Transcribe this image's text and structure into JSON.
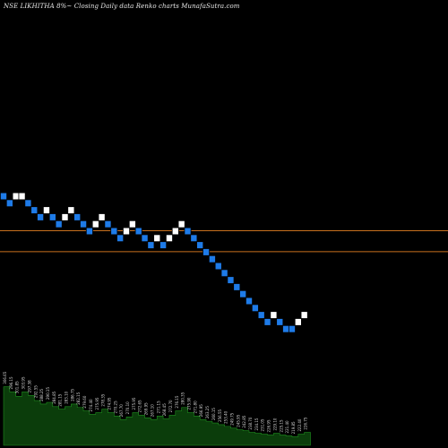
{
  "title": "NSE LIKHITHA 8%~  Closing Daily data  Renko  charts MunafaSutra.com",
  "colors": {
    "background": "#000000",
    "up_brick": "#ffffff",
    "down_brick": "#1e7be8",
    "brick_border": "#000000",
    "reference_line": "#c8701e",
    "volume_fill": "#0b3d0b",
    "volume_fill_bright": "#1f8f1f"
  },
  "chart_data": {
    "type": "renko",
    "bricks": [
      {
        "level": 0,
        "dir": "down"
      },
      {
        "level": -1,
        "dir": "down"
      },
      {
        "level": 0,
        "dir": "up"
      },
      {
        "level": 0,
        "dir": "up"
      },
      {
        "level": -1,
        "dir": "down"
      },
      {
        "level": -2,
        "dir": "down"
      },
      {
        "level": -3,
        "dir": "down"
      },
      {
        "level": -2,
        "dir": "up"
      },
      {
        "level": -3,
        "dir": "down"
      },
      {
        "level": -4,
        "dir": "down"
      },
      {
        "level": -3,
        "dir": "up"
      },
      {
        "level": -2,
        "dir": "up"
      },
      {
        "level": -3,
        "dir": "down"
      },
      {
        "level": -4,
        "dir": "down"
      },
      {
        "level": -5,
        "dir": "down"
      },
      {
        "level": -4,
        "dir": "up"
      },
      {
        "level": -3,
        "dir": "up"
      },
      {
        "level": -4,
        "dir": "down"
      },
      {
        "level": -5,
        "dir": "down"
      },
      {
        "level": -6,
        "dir": "down"
      },
      {
        "level": -5,
        "dir": "up"
      },
      {
        "level": -4,
        "dir": "up"
      },
      {
        "level": -5,
        "dir": "down"
      },
      {
        "level": -6,
        "dir": "down"
      },
      {
        "level": -7,
        "dir": "down"
      },
      {
        "level": -6,
        "dir": "up"
      },
      {
        "level": -7,
        "dir": "down"
      },
      {
        "level": -6,
        "dir": "up"
      },
      {
        "level": -5,
        "dir": "up"
      },
      {
        "level": -4,
        "dir": "up"
      },
      {
        "level": -5,
        "dir": "down"
      },
      {
        "level": -6,
        "dir": "down"
      },
      {
        "level": -7,
        "dir": "down"
      },
      {
        "level": -8,
        "dir": "down"
      },
      {
        "level": -9,
        "dir": "down"
      },
      {
        "level": -10,
        "dir": "down"
      },
      {
        "level": -11,
        "dir": "down"
      },
      {
        "level": -12,
        "dir": "down"
      },
      {
        "level": -13,
        "dir": "down"
      },
      {
        "level": -14,
        "dir": "down"
      },
      {
        "level": -15,
        "dir": "down"
      },
      {
        "level": -16,
        "dir": "down"
      },
      {
        "level": -17,
        "dir": "down"
      },
      {
        "level": -18,
        "dir": "down"
      },
      {
        "level": -17,
        "dir": "up"
      },
      {
        "level": -18,
        "dir": "down"
      },
      {
        "level": -19,
        "dir": "down"
      },
      {
        "level": -19,
        "dir": "down"
      },
      {
        "level": -18,
        "dir": "up"
      },
      {
        "level": -17,
        "dir": "up"
      }
    ],
    "reference_levels": [
      -5.0,
      -8.0
    ],
    "volume": [
      0.68,
      0.62,
      0.57,
      0.62,
      0.58,
      0.52,
      0.48,
      0.5,
      0.45,
      0.42,
      0.45,
      0.48,
      0.44,
      0.4,
      0.36,
      0.38,
      0.42,
      0.38,
      0.34,
      0.3,
      0.33,
      0.38,
      0.35,
      0.32,
      0.3,
      0.34,
      0.31,
      0.35,
      0.4,
      0.44,
      0.38,
      0.34,
      0.3,
      0.28,
      0.26,
      0.24,
      0.22,
      0.2,
      0.18,
      0.17,
      0.15,
      0.14,
      0.13,
      0.12,
      0.14,
      0.12,
      0.11,
      0.1,
      0.13,
      0.15
    ],
    "labels": [
      "306.65",
      "296.15",
      "301.85",
      "303.95",
      "297.38",
      "292.55",
      "288.25",
      "290.15",
      "284.85",
      "281.15",
      "283.10",
      "286.75",
      "282.15",
      "279.60",
      "274.40",
      "275.95",
      "278.35",
      "274.95",
      "270.25",
      "267.70",
      "270.10",
      "275.95",
      "272.65",
      "269.95",
      "267.10",
      "271.15",
      "268.45",
      "272.70",
      "276.15",
      "280.35",
      "275.90",
      "271.80",
      "266.95",
      "263.25",
      "260.15",
      "256.55",
      "253.40",
      "249.75",
      "245.95",
      "242.85",
      "238.70",
      "234.15",
      "231.05",
      "226.95",
      "229.10",
      "225.15",
      "221.40",
      "219.85",
      "222.40",
      "226.75"
    ]
  }
}
